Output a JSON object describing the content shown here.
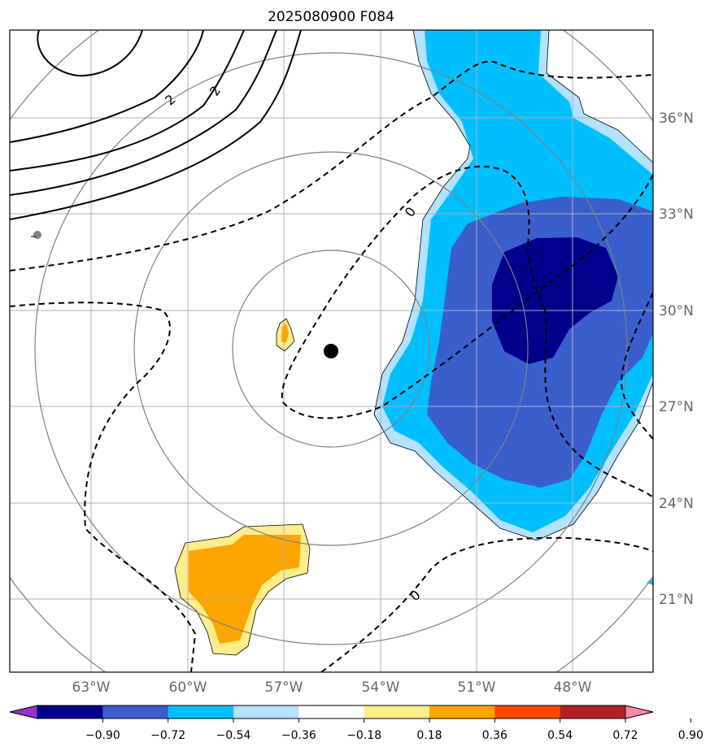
{
  "title": "2025080900 F084",
  "map": {
    "lon_labels": [
      "63°W",
      "60°W",
      "57°W",
      "54°W",
      "51°W",
      "48°W"
    ],
    "lat_labels": [
      "36°N",
      "33°N",
      "30°N",
      "27°N",
      "24°N",
      "21°N"
    ],
    "contour_labels": [
      "2",
      "2",
      "0",
      "0"
    ],
    "center_marker": "black-dot",
    "colors": {
      "dark_navy": "#00008b",
      "royal_blue": "#3a5fcd",
      "deep_sky": "#00bfff",
      "light_blue": "#b2e2ff",
      "light_yellow": "#ffec8b",
      "orange": "#ffa500",
      "range_ring": "#808080",
      "grid": "#b0b0b0"
    }
  },
  "colorbar": {
    "ticks": [
      "−0.90",
      "−0.72",
      "−0.54",
      "−0.36",
      "−0.18",
      "0.18",
      "0.36",
      "0.54",
      "0.72",
      "0.90"
    ],
    "colors": [
      "#9932cc",
      "#00008b",
      "#3a5fcd",
      "#00bfff",
      "#b2e2ff",
      "#ffffff",
      "#ffec8b",
      "#ffa500",
      "#ff4500",
      "#b22222",
      "#ff88aa"
    ]
  }
}
